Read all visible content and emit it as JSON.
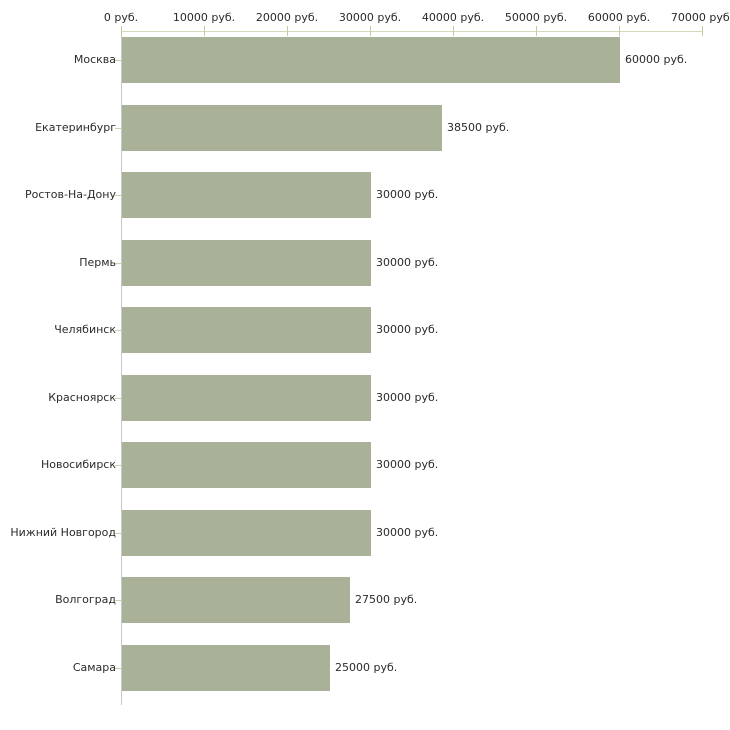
{
  "chart_data": {
    "type": "bar",
    "orientation": "horizontal",
    "title": "",
    "xlabel": "",
    "ylabel": "",
    "unit": "руб.",
    "categories": [
      "Москва",
      "Екатеринбург",
      "Ростов-На-Дону",
      "Пермь",
      "Челябинск",
      "Красноярск",
      "Новосибирск",
      "Нижний Новгород",
      "Волгоград",
      "Самара"
    ],
    "values": [
      60000,
      38500,
      30000,
      30000,
      30000,
      30000,
      30000,
      30000,
      27500,
      25000
    ],
    "value_labels": [
      "60000 руб.",
      "38500 руб.",
      "30000 руб.",
      "30000 руб.",
      "30000 руб.",
      "30000 руб.",
      "30000 руб.",
      "30000 руб.",
      "27500 руб.",
      "25000 руб."
    ],
    "x_ticks": [
      0,
      10000,
      20000,
      30000,
      40000,
      50000,
      60000,
      70000
    ],
    "x_tick_labels": [
      "0 руб.",
      "10000 руб.",
      "20000 руб.",
      "30000 руб.",
      "40000 руб.",
      "50000 руб.",
      "60000 руб.",
      "70000 руб."
    ],
    "xlim": [
      0,
      70000
    ],
    "grid": false,
    "legend": false,
    "axis_position": "top"
  },
  "colors": {
    "background": "#ffffff",
    "bar": "#aab199",
    "x_axis_line": "#d6d8ba",
    "x_tick": "#c6caa0",
    "y_axis_line": "#c9c9c9",
    "y_tick": "#cdd0ae",
    "text": "#2b2b2b"
  }
}
